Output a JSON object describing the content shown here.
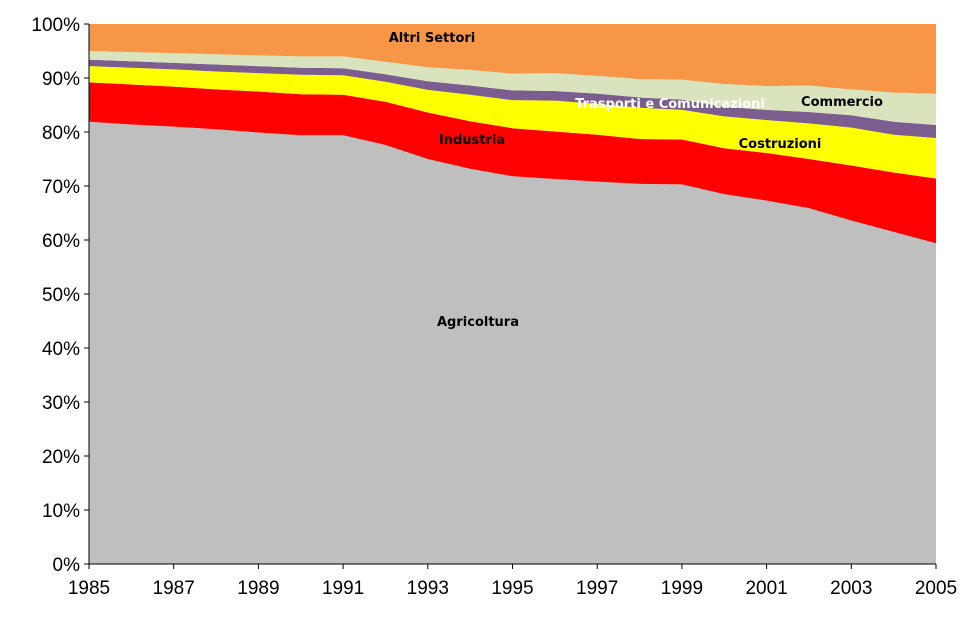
{
  "chart_data": {
    "type": "area",
    "stacked": true,
    "percent": true,
    "x": [
      1985,
      1986,
      1987,
      1988,
      1989,
      1990,
      1991,
      1992,
      1993,
      1994,
      1995,
      1996,
      1997,
      1998,
      1999,
      2000,
      2001,
      2002,
      2003,
      2004,
      2005
    ],
    "xticks": [
      "1985",
      "1987",
      "1989",
      "1991",
      "1993",
      "1995",
      "1997",
      "1999",
      "2001",
      "2003",
      "2005"
    ],
    "yticks": [
      "0%",
      "10%",
      "20%",
      "30%",
      "40%",
      "50%",
      "60%",
      "70%",
      "80%",
      "90%",
      "100%"
    ],
    "ylim": [
      0,
      100
    ],
    "grid": false,
    "legend": "none",
    "series": [
      {
        "name": "Agricoltura",
        "color": "#bfbfbf",
        "values": [
          81.9,
          81.4,
          81.0,
          80.5,
          79.9,
          79.4,
          79.4,
          77.6,
          75.0,
          73.2,
          71.8,
          71.3,
          70.8,
          70.4,
          70.3,
          68.5,
          67.3,
          65.9,
          63.6,
          61.5,
          59.4
        ]
      },
      {
        "name": "Industria",
        "color": "#ff0000",
        "values": [
          7.3,
          7.4,
          7.4,
          7.4,
          7.6,
          7.6,
          7.5,
          8.0,
          8.6,
          8.8,
          8.9,
          8.8,
          8.7,
          8.3,
          8.3,
          8.5,
          8.8,
          9.1,
          10.2,
          11.0,
          12.0
        ]
      },
      {
        "name": "Costruzioni",
        "color": "#ffff00",
        "values": [
          3.0,
          3.1,
          3.2,
          3.3,
          3.4,
          3.6,
          3.6,
          3.7,
          4.2,
          4.9,
          5.2,
          5.7,
          5.7,
          5.8,
          5.5,
          5.9,
          6.1,
          6.6,
          7.0,
          7.0,
          7.5
        ]
      },
      {
        "name": "Trasporti e Comunicazioni",
        "color": "#7b5e8f",
        "values": [
          1.2,
          1.2,
          1.2,
          1.3,
          1.3,
          1.3,
          1.3,
          1.4,
          1.6,
          1.7,
          1.8,
          1.8,
          1.9,
          1.9,
          1.9,
          1.8,
          1.9,
          2.1,
          2.3,
          2.4,
          2.4
        ]
      },
      {
        "name": "Commercio",
        "color": "#d9e3bd",
        "values": [
          1.6,
          1.7,
          1.8,
          1.9,
          2.0,
          2.1,
          2.2,
          2.3,
          2.6,
          2.9,
          3.1,
          3.3,
          3.3,
          3.4,
          3.7,
          4.2,
          4.4,
          4.9,
          4.8,
          5.4,
          5.8
        ]
      },
      {
        "name": "Altri Settori",
        "color": "#f79646",
        "values": [
          5.0,
          5.2,
          5.4,
          5.6,
          5.8,
          6.0,
          6.0,
          7.0,
          8.0,
          8.5,
          9.2,
          9.1,
          9.6,
          10.2,
          10.3,
          11.1,
          11.5,
          11.4,
          12.1,
          12.7,
          12.9
        ]
      }
    ]
  }
}
